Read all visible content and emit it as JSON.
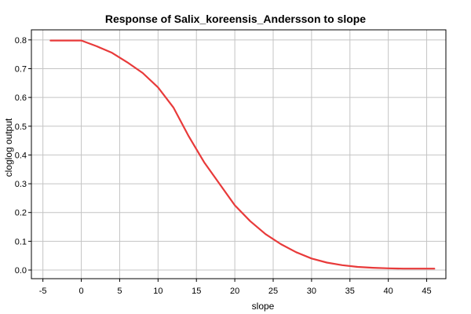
{
  "chart_data": {
    "type": "line",
    "title": "Response of Salix_koreensis_Andersson to slope",
    "xlabel": "slope",
    "ylabel": "cloglog output",
    "xlim": [
      -6.5,
      47.5
    ],
    "ylim": [
      -0.03,
      0.835
    ],
    "x_ticks": [
      -5,
      0,
      5,
      10,
      15,
      20,
      25,
      30,
      35,
      40,
      45
    ],
    "x_tick_labels": [
      "-5",
      "0",
      "5",
      "10",
      "15",
      "20",
      "25",
      "30",
      "35",
      "40",
      "45"
    ],
    "y_ticks": [
      0.0,
      0.1,
      0.2,
      0.3,
      0.4,
      0.5,
      0.6,
      0.7,
      0.8
    ],
    "y_tick_labels": [
      "0.0",
      "0.1",
      "0.2",
      "0.3",
      "0.4",
      "0.5",
      "0.6",
      "0.7",
      "0.8"
    ],
    "grid": true,
    "legend": "none",
    "series": [
      {
        "color": "#e83a3a",
        "x": [
          -4,
          -2,
          0,
          2,
          4,
          6,
          8,
          10,
          12,
          14,
          16,
          18,
          20,
          22,
          24,
          26,
          28,
          30,
          32,
          34,
          36,
          38,
          40,
          42,
          44,
          46
        ],
        "y": [
          0.798,
          0.798,
          0.798,
          0.778,
          0.755,
          0.722,
          0.685,
          0.635,
          0.565,
          0.465,
          0.375,
          0.3,
          0.225,
          0.17,
          0.125,
          0.09,
          0.062,
          0.04,
          0.026,
          0.017,
          0.011,
          0.008,
          0.006,
          0.005,
          0.005,
          0.005
        ]
      }
    ]
  }
}
